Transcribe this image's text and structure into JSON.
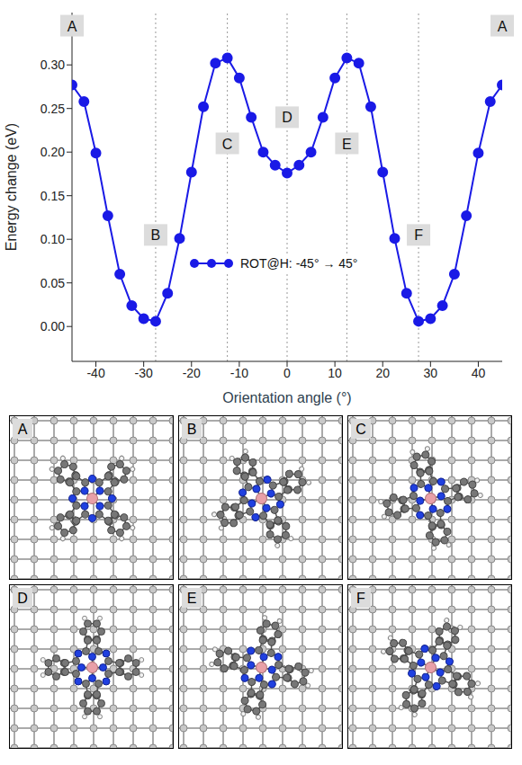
{
  "chart_data": {
    "type": "line",
    "x_label": "Orientation angle (°)",
    "y_label": "Energy change (eV)",
    "xlim": [
      -45,
      45
    ],
    "xticks": [
      -40,
      -30,
      -20,
      -10,
      0,
      10,
      20,
      30,
      40
    ],
    "ylim": [
      -0.04,
      0.36
    ],
    "yticks": [
      {
        "value": 0,
        "label": "0.00"
      },
      {
        "value": 0.05,
        "label": "0.05"
      },
      {
        "value": 0.1,
        "label": "0.10"
      },
      {
        "value": 0.15,
        "label": "0.15"
      },
      {
        "value": 0.2,
        "label": "0.20"
      },
      {
        "value": 0.25,
        "label": "0.25"
      },
      {
        "value": 0.3,
        "label": "0.30"
      }
    ],
    "legend": "center",
    "x": [
      -45,
      -42.5,
      -40,
      -37.5,
      -35,
      -32.5,
      -30,
      -27.5,
      -25,
      -22.5,
      -20,
      -17.5,
      -15,
      -12.5,
      -10,
      -7.5,
      -5,
      -2.5,
      0,
      2.5,
      5,
      7.5,
      10,
      12.5,
      15,
      17.5,
      20,
      22.5,
      25,
      27.5,
      30,
      32.5,
      35,
      37.5,
      40,
      42.5,
      45
    ],
    "series": [
      {
        "name": "ROT@H: -45° → 45°",
        "color": "#1a1ae6",
        "marker": "circle",
        "line_style": "solid",
        "values": [
          0.277,
          0.258,
          0.199,
          0.127,
          0.06,
          0.024,
          0.009,
          0.006,
          0.038,
          0.101,
          0.177,
          0.252,
          0.302,
          0.308,
          0.285,
          0.24,
          0.2,
          0.185,
          0.176,
          0.185,
          0.2,
          0.24,
          0.285,
          0.308,
          0.302,
          0.252,
          0.177,
          0.101,
          0.038,
          0.006,
          0.009,
          0.024,
          0.06,
          0.127,
          0.199,
          0.258,
          0.277
        ]
      }
    ],
    "annotations": [
      {
        "text": "A",
        "x": -45,
        "y": 0.345
      },
      {
        "text": "A",
        "x": 45,
        "y": 0.345
      },
      {
        "text": "B",
        "x": -27.5,
        "y": 0.105
      },
      {
        "text": "C",
        "x": -12.5,
        "y": 0.21
      },
      {
        "text": "D",
        "x": 0,
        "y": 0.24
      },
      {
        "text": "E",
        "x": 12.5,
        "y": 0.21
      },
      {
        "text": "F",
        "x": 27.5,
        "y": 0.105
      }
    ]
  },
  "panels": [
    "A",
    "B",
    "C",
    "D",
    "E",
    "F"
  ]
}
